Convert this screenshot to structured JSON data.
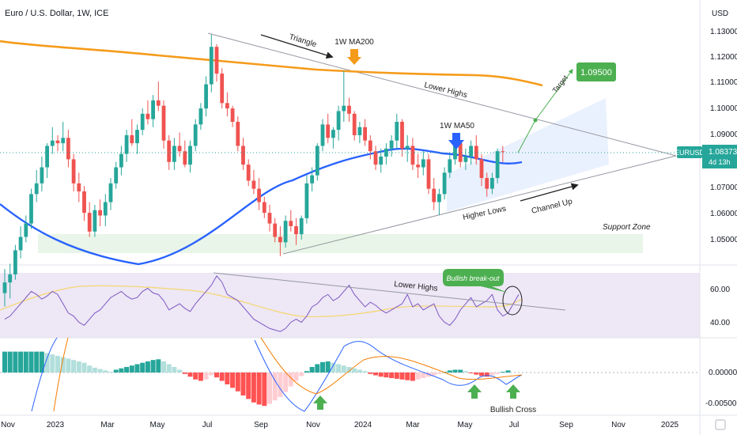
{
  "header": {
    "symbol_title": "Euro / U.S. Dollar, 1W, ICE",
    "currency": "USD"
  },
  "price_pane": {
    "y_ticks": [
      "1.13000",
      "1.12000",
      "1.11000",
      "1.10000",
      "1.09000",
      "1.07000",
      "1.06000",
      "1.05000"
    ],
    "current_tag": {
      "symbol": "EURUSD",
      "price": "1.08373",
      "countdown": "4d 13h"
    },
    "target_tag": "1.09500",
    "annotations": {
      "triangle": "Triangle",
      "ma200": "1W MA200",
      "lower_highs": "Lower Highs",
      "ma50": "1W MA50",
      "higher_lows": "Higher Lows",
      "channel_up": "Channel Up",
      "target": "Target",
      "support_zone": "Support Zone"
    }
  },
  "rsi_pane": {
    "y_ticks": [
      "60.00",
      "40.00"
    ],
    "annotations": {
      "lower_highs": "Lower Highs",
      "bullish_breakout": "Bullish break-out"
    }
  },
  "macd_pane": {
    "y_ticks": [
      "0.00000",
      "-0.00500"
    ],
    "annotations": {
      "bullish_cross": "Bullish Cross"
    }
  },
  "x_axis": {
    "labels": [
      "Nov",
      "2023",
      "Mar",
      "May",
      "Jul",
      "Sep",
      "Nov",
      "2024",
      "Mar",
      "May",
      "Jul",
      "Sep",
      "Nov",
      "2025"
    ]
  },
  "colors": {
    "bull": "#26a69a",
    "bear": "#ef5350",
    "ma50": "#2962ff",
    "ma200": "#f59b1a",
    "rsi": "#7e57c2",
    "rsi_ma": "#f5d76e",
    "target": "#4caf50",
    "tag": "#26a69a"
  },
  "chart_data": [
    {
      "type": "candlestick",
      "title": "Euro / U.S. Dollar, 1W, ICE",
      "ylim": [
        1.043,
        1.134
      ],
      "moving_averages": [
        "1W MA50",
        "1W MA200"
      ],
      "current_price": 1.08373,
      "target": 1.095,
      "candles": [
        [
          1.031,
          1.04,
          1.026,
          1.035
        ],
        [
          1.035,
          1.042,
          1.029,
          1.038
        ],
        [
          1.038,
          1.049,
          1.036,
          1.047
        ],
        [
          1.047,
          1.056,
          1.044,
          1.052
        ],
        [
          1.052,
          1.06,
          1.05,
          1.057
        ],
        [
          1.057,
          1.07,
          1.055,
          1.068
        ],
        [
          1.068,
          1.077,
          1.065,
          1.072
        ],
        [
          1.072,
          1.082,
          1.069,
          1.078
        ],
        [
          1.078,
          1.087,
          1.074,
          1.086
        ],
        [
          1.086,
          1.093,
          1.083,
          1.088
        ],
        [
          1.088,
          1.09,
          1.084,
          1.087
        ],
        [
          1.087,
          1.095,
          1.084,
          1.089
        ],
        [
          1.089,
          1.092,
          1.078,
          1.081
        ],
        [
          1.081,
          1.083,
          1.069,
          1.072
        ],
        [
          1.072,
          1.076,
          1.065,
          1.069
        ],
        [
          1.069,
          1.071,
          1.058,
          1.061
        ],
        [
          1.061,
          1.065,
          1.052,
          1.054
        ],
        [
          1.054,
          1.064,
          1.052,
          1.062
        ],
        [
          1.062,
          1.066,
          1.056,
          1.06
        ],
        [
          1.06,
          1.068,
          1.056,
          1.065
        ],
        [
          1.065,
          1.074,
          1.062,
          1.072
        ],
        [
          1.072,
          1.08,
          1.07,
          1.078
        ],
        [
          1.078,
          1.086,
          1.075,
          1.083
        ],
        [
          1.083,
          1.092,
          1.08,
          1.09
        ],
        [
          1.09,
          1.096,
          1.086,
          1.087
        ],
        [
          1.087,
          1.094,
          1.083,
          1.092
        ],
        [
          1.092,
          1.1,
          1.09,
          1.098
        ],
        [
          1.098,
          1.103,
          1.094,
          1.096
        ],
        [
          1.096,
          1.105,
          1.093,
          1.103
        ],
        [
          1.103,
          1.11,
          1.099,
          1.101
        ],
        [
          1.101,
          1.103,
          1.085,
          1.088
        ],
        [
          1.088,
          1.09,
          1.077,
          1.08
        ],
        [
          1.08,
          1.089,
          1.077,
          1.086
        ],
        [
          1.086,
          1.091,
          1.082,
          1.084
        ],
        [
          1.084,
          1.088,
          1.078,
          1.079
        ],
        [
          1.079,
          1.088,
          1.076,
          1.086
        ],
        [
          1.086,
          1.096,
          1.084,
          1.094
        ],
        [
          1.094,
          1.102,
          1.092,
          1.1
        ],
        [
          1.1,
          1.112,
          1.097,
          1.109
        ],
        [
          1.109,
          1.1276,
          1.106,
          1.123
        ],
        [
          1.123,
          1.124,
          1.11,
          1.113
        ],
        [
          1.113,
          1.115,
          1.1,
          1.102
        ],
        [
          1.102,
          1.106,
          1.097,
          1.1
        ],
        [
          1.1,
          1.101,
          1.093,
          1.095
        ],
        [
          1.095,
          1.097,
          1.084,
          1.086
        ],
        [
          1.086,
          1.089,
          1.077,
          1.079
        ],
        [
          1.079,
          1.081,
          1.071,
          1.073
        ],
        [
          1.073,
          1.077,
          1.068,
          1.07
        ],
        [
          1.07,
          1.074,
          1.062,
          1.065
        ],
        [
          1.065,
          1.067,
          1.059,
          1.061
        ],
        [
          1.061,
          1.064,
          1.054,
          1.057
        ],
        [
          1.057,
          1.059,
          1.05,
          1.052
        ],
        [
          1.052,
          1.056,
          1.0448,
          1.05
        ],
        [
          1.05,
          1.06,
          1.048,
          1.058
        ],
        [
          1.058,
          1.062,
          1.054,
          1.056
        ],
        [
          1.056,
          1.059,
          1.049,
          1.053
        ],
        [
          1.053,
          1.06,
          1.051,
          1.059
        ],
        [
          1.059,
          1.075,
          1.057,
          1.072
        ],
        [
          1.072,
          1.078,
          1.069,
          1.075
        ],
        [
          1.075,
          1.087,
          1.073,
          1.086
        ],
        [
          1.086,
          1.096,
          1.084,
          1.094
        ],
        [
          1.094,
          1.098,
          1.087,
          1.089
        ],
        [
          1.089,
          1.093,
          1.085,
          1.092
        ],
        [
          1.092,
          1.101,
          1.088,
          1.099
        ],
        [
          1.099,
          1.114,
          1.095,
          1.101
        ],
        [
          1.101,
          1.104,
          1.095,
          1.098
        ],
        [
          1.098,
          1.099,
          1.088,
          1.09
        ],
        [
          1.09,
          1.095,
          1.087,
          1.093
        ],
        [
          1.093,
          1.096,
          1.086,
          1.088
        ],
        [
          1.088,
          1.09,
          1.081,
          1.084
        ],
        [
          1.084,
          1.086,
          1.077,
          1.079
        ],
        [
          1.079,
          1.085,
          1.076,
          1.082
        ],
        [
          1.082,
          1.087,
          1.079,
          1.085
        ],
        [
          1.085,
          1.09,
          1.082,
          1.088
        ],
        [
          1.088,
          1.098,
          1.085,
          1.095
        ],
        [
          1.095,
          1.096,
          1.082,
          1.085
        ],
        [
          1.085,
          1.09,
          1.08,
          1.086
        ],
        [
          1.086,
          1.089,
          1.077,
          1.079
        ],
        [
          1.079,
          1.083,
          1.074,
          1.078
        ],
        [
          1.078,
          1.084,
          1.075,
          1.081
        ],
        [
          1.081,
          1.083,
          1.068,
          1.07
        ],
        [
          1.07,
          1.074,
          1.062,
          1.065
        ],
        [
          1.065,
          1.07,
          1.0601,
          1.068
        ],
        [
          1.068,
          1.078,
          1.066,
          1.076
        ],
        [
          1.076,
          1.083,
          1.074,
          1.081
        ],
        [
          1.081,
          1.089,
          1.079,
          1.087
        ],
        [
          1.087,
          1.088,
          1.078,
          1.08
        ],
        [
          1.08,
          1.085,
          1.077,
          1.082
        ],
        [
          1.082,
          1.088,
          1.079,
          1.086
        ],
        [
          1.086,
          1.09,
          1.079,
          1.081
        ],
        [
          1.081,
          1.083,
          1.071,
          1.074
        ],
        [
          1.074,
          1.076,
          1.067,
          1.07
        ],
        [
          1.07,
          1.076,
          1.068,
          1.074
        ],
        [
          1.074,
          1.085,
          1.072,
          1.084
        ],
        [
          1.084,
          1.086,
          1.08,
          1.0837
        ]
      ]
    },
    {
      "type": "line",
      "title": "RSI",
      "ylim": [
        30,
        72
      ],
      "series": [
        {
          "values": [
            42,
            44,
            48,
            52,
            56,
            60,
            58,
            55,
            57,
            60,
            58,
            52,
            46,
            44,
            40,
            38,
            42,
            46,
            48,
            52,
            56,
            58,
            60,
            57,
            55,
            56,
            60,
            62,
            59,
            58,
            54,
            48,
            50,
            52,
            49,
            47,
            52,
            56,
            60,
            64,
            70,
            66,
            58,
            56,
            54,
            50,
            46,
            42,
            40,
            38,
            36,
            35,
            34,
            36,
            40,
            42,
            40,
            44,
            50,
            52,
            56,
            58,
            54,
            56,
            60,
            64,
            58,
            54,
            50,
            53,
            51,
            48,
            46,
            48,
            50,
            52,
            58,
            50,
            52,
            48,
            50,
            52,
            44,
            40,
            38,
            42,
            48,
            52,
            56,
            50,
            52,
            54,
            58,
            48,
            44,
            46,
            52,
            58
          ]
        }
      ]
    },
    {
      "type": "bar",
      "title": "MACD",
      "ylim": [
        -0.0055,
        0.0035
      ],
      "series": [
        {
          "name": "histogram",
          "values": [
            0.003,
            0.003,
            0.003,
            0.003,
            0.003,
            0.003,
            0.003,
            0.003,
            0.0028,
            0.0026,
            0.0024,
            0.0022,
            0.002,
            0.0018,
            0.0016,
            0.0014,
            0.001,
            0.0007,
            0.0005,
            0.0003,
            0.0001,
            0.0004,
            0.0006,
            0.0008,
            0.001,
            0.0012,
            0.0014,
            0.0016,
            0.0018,
            0.0019,
            0.0016,
            0.0012,
            0.0008,
            0.0004,
            -0.0002,
            -0.0006,
            -0.001,
            -0.0012,
            -0.001,
            -0.0004,
            -0.0007,
            -0.0012,
            -0.0017,
            -0.0022,
            -0.0027,
            -0.0033,
            -0.0038,
            -0.0043,
            -0.0046,
            -0.0048,
            -0.0045,
            -0.004,
            -0.0035,
            -0.0028,
            -0.002,
            -0.0012,
            -0.0005,
            0.0002,
            0.0008,
            0.0012,
            0.0015,
            0.0016,
            0.0014,
            0.0012,
            0.001,
            0.0008,
            0.0006,
            0.0004,
            0.0002,
            -0.0002,
            -0.0004,
            -0.0006,
            -0.0007,
            -0.0008,
            -0.0009,
            -0.001,
            -0.0011,
            -0.0012,
            -0.001,
            -0.0008,
            -0.0006,
            -0.0004,
            -0.0002,
            0.0001,
            0.0003,
            0.0004,
            0.0004,
            0.0002,
            -0.0001,
            -0.0003,
            -0.0005,
            -0.0006,
            -0.0004,
            -0.0002,
            0.0001,
            0.0003
          ]
        }
      ]
    }
  ]
}
